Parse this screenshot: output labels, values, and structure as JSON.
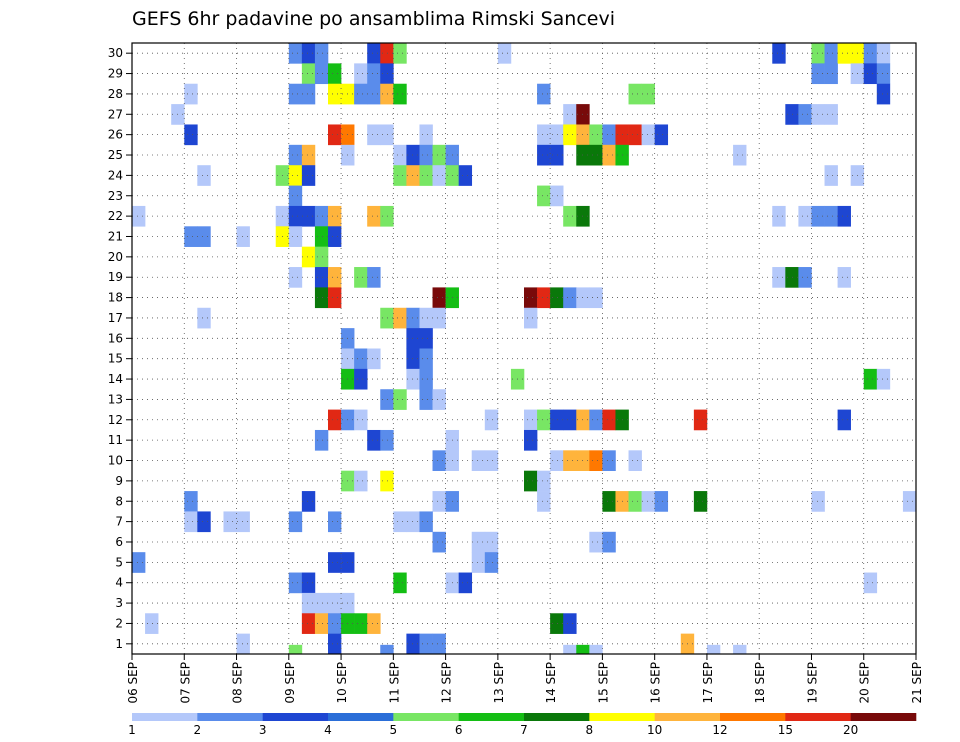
{
  "chart_data": {
    "type": "heatmap",
    "title": "GEFS 6hr padavine po ansamblima Rimski Sancevi",
    "xlabel": "",
    "ylabel": "",
    "x_tick_labels": [
      "06 SEP",
      "07 SEP",
      "08 SEP",
      "09 SEP",
      "10 SEP",
      "11 SEP",
      "12 SEP",
      "13 SEP",
      "14 SEP",
      "15 SEP",
      "16 SEP",
      "17 SEP",
      "18 SEP",
      "19 SEP",
      "20 SEP",
      "21 SEP"
    ],
    "y_tick_labels": [
      "1",
      "2",
      "3",
      "4",
      "5",
      "6",
      "7",
      "8",
      "9",
      "10",
      "11",
      "12",
      "13",
      "14",
      "15",
      "16",
      "17",
      "18",
      "19",
      "20",
      "21",
      "22",
      "23",
      "24",
      "25",
      "26",
      "27",
      "28",
      "29",
      "30"
    ],
    "xlim_days": [
      6,
      21
    ],
    "ylim_members": [
      0,
      30
    ],
    "time_step_hours": 6,
    "grid": "dotted",
    "colorbar": {
      "placement": "bottom",
      "levels": [
        "1",
        "2",
        "3",
        "4",
        "5",
        "6",
        "7",
        "8",
        "10",
        "12",
        "15",
        "20"
      ],
      "colors": [
        "#b4c8fa",
        "#5a8ceb",
        "#1e46d2",
        "#2a6ed8",
        "#78e664",
        "#14be14",
        "#0a780a",
        "#ffff00",
        "#ffb43c",
        "#ff7800",
        "#e12814",
        "#780a0a"
      ]
    },
    "values": [
      [
        30,
        9.0,
        2
      ],
      [
        30,
        9.25,
        3
      ],
      [
        30,
        9.5,
        2
      ],
      [
        30,
        10.5,
        3
      ],
      [
        30,
        10.75,
        15
      ],
      [
        30,
        11.0,
        5
      ],
      [
        30,
        13.0,
        1
      ],
      [
        30,
        18.25,
        3
      ],
      [
        30,
        19.0,
        5
      ],
      [
        30,
        19.25,
        2
      ],
      [
        30,
        19.5,
        8
      ],
      [
        30,
        19.75,
        8
      ],
      [
        30,
        20.0,
        2
      ],
      [
        30,
        20.25,
        1
      ],
      [
        29,
        9.25,
        5
      ],
      [
        29,
        9.5,
        2
      ],
      [
        29,
        9.75,
        6
      ],
      [
        29,
        10.25,
        1
      ],
      [
        29,
        10.5,
        2
      ],
      [
        29,
        10.75,
        3
      ],
      [
        29,
        19.0,
        2
      ],
      [
        29,
        19.25,
        2
      ],
      [
        29,
        19.75,
        1
      ],
      [
        29,
        20.0,
        3
      ],
      [
        29,
        20.25,
        2
      ],
      [
        28,
        7.0,
        1
      ],
      [
        28,
        9.0,
        2
      ],
      [
        28,
        9.25,
        2
      ],
      [
        28,
        9.75,
        8
      ],
      [
        28,
        10.0,
        8
      ],
      [
        28,
        10.25,
        2
      ],
      [
        28,
        10.5,
        2
      ],
      [
        28,
        10.75,
        10
      ],
      [
        28,
        11.0,
        6
      ],
      [
        28,
        13.75,
        2
      ],
      [
        28,
        15.5,
        5
      ],
      [
        28,
        15.75,
        5
      ],
      [
        28,
        20.25,
        3
      ],
      [
        27,
        6.75,
        1
      ],
      [
        27,
        14.25,
        1
      ],
      [
        27,
        14.5,
        20
      ],
      [
        27,
        18.5,
        3
      ],
      [
        27,
        18.75,
        2
      ],
      [
        27,
        19.0,
        1
      ],
      [
        27,
        19.25,
        1
      ],
      [
        26,
        7.0,
        3
      ],
      [
        26,
        9.75,
        15
      ],
      [
        26,
        10.0,
        12
      ],
      [
        26,
        10.5,
        1
      ],
      [
        26,
        10.75,
        1
      ],
      [
        26,
        11.5,
        1
      ],
      [
        26,
        13.75,
        1
      ],
      [
        26,
        14.0,
        1
      ],
      [
        26,
        14.25,
        8
      ],
      [
        26,
        14.5,
        10
      ],
      [
        26,
        14.75,
        5
      ],
      [
        26,
        15.0,
        2
      ],
      [
        26,
        15.25,
        15
      ],
      [
        26,
        15.5,
        15
      ],
      [
        26,
        15.75,
        1
      ],
      [
        26,
        16.0,
        3
      ],
      [
        25,
        9.0,
        2
      ],
      [
        25,
        9.25,
        10
      ],
      [
        25,
        10.0,
        1
      ],
      [
        25,
        11.0,
        1
      ],
      [
        25,
        11.25,
        3
      ],
      [
        25,
        11.5,
        2
      ],
      [
        25,
        11.75,
        5
      ],
      [
        25,
        12.0,
        2
      ],
      [
        25,
        13.75,
        3
      ],
      [
        25,
        14.0,
        3
      ],
      [
        25,
        14.5,
        7
      ],
      [
        25,
        14.75,
        7
      ],
      [
        25,
        15.0,
        10
      ],
      [
        25,
        15.25,
        6
      ],
      [
        25,
        17.5,
        1
      ],
      [
        24,
        7.25,
        1
      ],
      [
        24,
        8.75,
        5
      ],
      [
        24,
        9.0,
        8
      ],
      [
        24,
        9.25,
        3
      ],
      [
        24,
        11.0,
        5
      ],
      [
        24,
        11.25,
        10
      ],
      [
        24,
        11.5,
        5
      ],
      [
        24,
        11.75,
        1
      ],
      [
        24,
        12.0,
        5
      ],
      [
        24,
        12.25,
        3
      ],
      [
        24,
        19.25,
        1
      ],
      [
        24,
        19.75,
        1
      ],
      [
        23,
        9.0,
        2
      ],
      [
        23,
        13.75,
        5
      ],
      [
        23,
        14.0,
        1
      ],
      [
        22,
        6.0,
        1
      ],
      [
        22,
        8.75,
        1
      ],
      [
        22,
        9.0,
        3
      ],
      [
        22,
        9.25,
        3
      ],
      [
        22,
        9.5,
        2
      ],
      [
        22,
        9.75,
        10
      ],
      [
        22,
        10.5,
        10
      ],
      [
        22,
        10.75,
        5
      ],
      [
        22,
        14.25,
        5
      ],
      [
        22,
        14.5,
        7
      ],
      [
        22,
        18.25,
        1
      ],
      [
        22,
        18.75,
        1
      ],
      [
        22,
        19.0,
        2
      ],
      [
        22,
        19.25,
        2
      ],
      [
        22,
        19.5,
        3
      ],
      [
        21,
        7.0,
        2
      ],
      [
        21,
        7.25,
        2
      ],
      [
        21,
        8.0,
        1
      ],
      [
        21,
        8.75,
        8
      ],
      [
        21,
        9.0,
        1
      ],
      [
        21,
        9.5,
        6
      ],
      [
        21,
        9.75,
        3
      ],
      [
        20,
        9.25,
        8
      ],
      [
        20,
        9.5,
        5
      ],
      [
        19,
        9.0,
        1
      ],
      [
        19,
        9.5,
        3
      ],
      [
        19,
        9.75,
        10
      ],
      [
        19,
        10.25,
        5
      ],
      [
        19,
        10.5,
        2
      ],
      [
        19,
        18.25,
        1
      ],
      [
        19,
        18.5,
        7
      ],
      [
        19,
        18.75,
        2
      ],
      [
        19,
        19.5,
        1
      ],
      [
        18,
        9.5,
        7
      ],
      [
        18,
        9.75,
        15
      ],
      [
        18,
        11.75,
        20
      ],
      [
        18,
        12.0,
        6
      ],
      [
        18,
        13.5,
        20
      ],
      [
        18,
        13.75,
        15
      ],
      [
        18,
        14.0,
        7
      ],
      [
        18,
        14.25,
        2
      ],
      [
        18,
        14.5,
        1
      ],
      [
        18,
        14.75,
        1
      ],
      [
        17,
        7.25,
        1
      ],
      [
        17,
        10.75,
        5
      ],
      [
        17,
        11.0,
        10
      ],
      [
        17,
        11.25,
        2
      ],
      [
        17,
        11.5,
        1
      ],
      [
        17,
        11.75,
        1
      ],
      [
        17,
        13.5,
        1
      ],
      [
        16,
        10.0,
        2
      ],
      [
        16,
        11.25,
        3
      ],
      [
        16,
        11.5,
        3
      ],
      [
        15,
        10.0,
        1
      ],
      [
        15,
        10.25,
        2
      ],
      [
        15,
        10.5,
        1
      ],
      [
        15,
        11.25,
        3
      ],
      [
        15,
        11.5,
        2
      ],
      [
        14,
        10.0,
        6
      ],
      [
        14,
        10.25,
        3
      ],
      [
        14,
        11.25,
        1
      ],
      [
        14,
        11.5,
        2
      ],
      [
        14,
        13.25,
        5
      ],
      [
        14,
        20.0,
        6
      ],
      [
        14,
        20.25,
        1
      ],
      [
        13,
        10.75,
        2
      ],
      [
        13,
        11.0,
        5
      ],
      [
        13,
        11.5,
        2
      ],
      [
        13,
        11.75,
        1
      ],
      [
        12,
        9.75,
        15
      ],
      [
        12,
        10.0,
        2
      ],
      [
        12,
        10.25,
        1
      ],
      [
        12,
        12.75,
        1
      ],
      [
        12,
        13.5,
        1
      ],
      [
        12,
        13.75,
        5
      ],
      [
        12,
        14.0,
        3
      ],
      [
        12,
        14.25,
        3
      ],
      [
        12,
        14.5,
        10
      ],
      [
        12,
        14.75,
        2
      ],
      [
        12,
        15.0,
        15
      ],
      [
        12,
        15.25,
        7
      ],
      [
        12,
        16.75,
        15
      ],
      [
        12,
        19.5,
        3
      ],
      [
        11,
        9.5,
        2
      ],
      [
        11,
        10.5,
        3
      ],
      [
        11,
        10.75,
        2
      ],
      [
        11,
        13.5,
        3
      ],
      [
        10,
        11.75,
        2
      ],
      [
        11,
        12.0,
        1
      ],
      [
        10,
        12.0,
        1
      ],
      [
        10,
        12.5,
        1
      ],
      [
        10,
        12.75,
        1
      ],
      [
        10,
        14.0,
        1
      ],
      [
        10,
        14.25,
        10
      ],
      [
        10,
        14.5,
        10
      ],
      [
        10,
        14.75,
        12
      ],
      [
        10,
        15.0,
        2
      ],
      [
        10,
        15.5,
        1
      ],
      [
        9,
        10.0,
        5
      ],
      [
        9,
        10.25,
        1
      ],
      [
        9,
        10.75,
        8
      ],
      [
        9,
        13.5,
        7
      ],
      [
        9,
        13.75,
        1
      ],
      [
        8,
        7.0,
        2
      ],
      [
        8,
        9.25,
        3
      ],
      [
        8,
        11.75,
        1
      ],
      [
        8,
        12.0,
        2
      ],
      [
        8,
        13.75,
        1
      ],
      [
        8,
        15.0,
        7
      ],
      [
        8,
        15.25,
        10
      ],
      [
        8,
        15.5,
        5
      ],
      [
        8,
        15.75,
        1
      ],
      [
        8,
        16.0,
        2
      ],
      [
        8,
        16.75,
        7
      ],
      [
        8,
        19.0,
        1
      ],
      [
        8,
        20.75,
        1
      ],
      [
        7,
        7.0,
        1
      ],
      [
        7,
        7.25,
        3
      ],
      [
        7,
        7.75,
        1
      ],
      [
        7,
        8.0,
        1
      ],
      [
        7,
        9.0,
        2
      ],
      [
        7,
        9.75,
        2
      ],
      [
        7,
        11.0,
        1
      ],
      [
        7,
        11.25,
        1
      ],
      [
        7,
        11.5,
        2
      ],
      [
        6,
        11.75,
        2
      ],
      [
        6,
        12.5,
        1
      ],
      [
        6,
        12.75,
        1
      ],
      [
        6,
        14.75,
        1
      ],
      [
        6,
        15.0,
        2
      ],
      [
        5,
        6.0,
        2
      ],
      [
        5,
        9.75,
        3
      ],
      [
        5,
        10.0,
        3
      ],
      [
        5,
        12.5,
        1
      ],
      [
        5,
        12.75,
        2
      ],
      [
        4,
        9.0,
        2
      ],
      [
        4,
        9.25,
        3
      ],
      [
        4,
        11.0,
        6
      ],
      [
        4,
        12.0,
        1
      ],
      [
        4,
        12.25,
        3
      ],
      [
        4,
        20.0,
        1
      ],
      [
        3,
        9.25,
        1
      ],
      [
        3,
        9.5,
        1
      ],
      [
        3,
        9.75,
        1
      ],
      [
        3,
        10.0,
        1
      ],
      [
        2,
        6.25,
        1
      ],
      [
        2,
        9.25,
        15
      ],
      [
        2,
        9.5,
        10
      ],
      [
        2,
        9.75,
        2
      ],
      [
        2,
        10.0,
        6
      ],
      [
        2,
        10.25,
        6
      ],
      [
        2,
        10.5,
        10
      ],
      [
        2,
        14.0,
        7
      ],
      [
        2,
        14.25,
        3
      ],
      [
        1,
        9.75,
        3
      ],
      [
        1,
        8.0,
        1
      ],
      [
        1,
        11.25,
        3
      ],
      [
        1,
        11.5,
        2
      ],
      [
        1,
        11.75,
        2
      ],
      [
        1,
        16.5,
        10
      ],
      [
        0,
        9.0,
        5
      ],
      [
        0,
        10.75,
        2
      ],
      [
        0,
        14.25,
        1
      ],
      [
        0,
        14.5,
        6
      ],
      [
        0,
        14.75,
        1
      ],
      [
        0,
        17.0,
        1
      ],
      [
        0,
        17.5,
        1
      ]
    ]
  }
}
